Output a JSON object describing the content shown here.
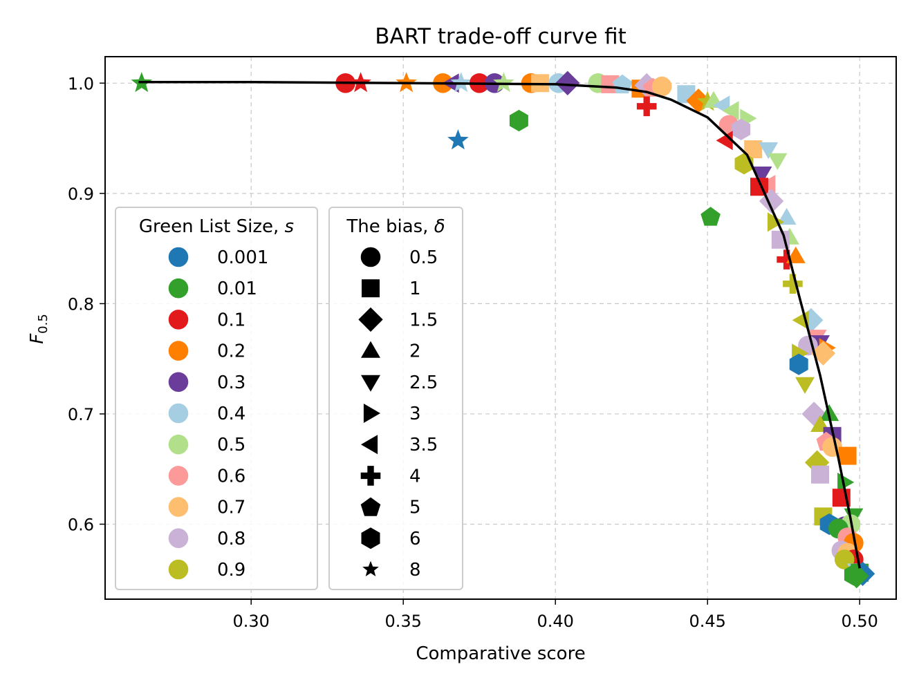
{
  "chart_data": {
    "type": "scatter",
    "title": "BART trade-off curve fit",
    "xlabel": "Comparative score",
    "ylabel": "F",
    "ylabel_sub": "0.5",
    "xlim": [
      0.252,
      0.512
    ],
    "ylim": [
      0.532,
      1.024
    ],
    "xticks": [
      "0.30",
      "0.35",
      "0.40",
      "0.45",
      "0.50"
    ],
    "xtick_values": [
      0.3,
      0.35,
      0.4,
      0.45,
      0.5
    ],
    "yticks": [
      "0.6",
      "0.7",
      "0.8",
      "0.9",
      "1.0"
    ],
    "ytick_values": [
      0.6,
      0.7,
      0.8,
      0.9,
      1.0
    ],
    "grid": true,
    "legends": [
      {
        "title": "Green List Size, ",
        "title_var": "s",
        "placement": "lower-left",
        "entries": [
          {
            "label": "0.001",
            "color": "#1f78b4"
          },
          {
            "label": "0.01",
            "color": "#33a02c"
          },
          {
            "label": "0.1",
            "color": "#e31a1c"
          },
          {
            "label": "0.2",
            "color": "#ff7f00"
          },
          {
            "label": "0.3",
            "color": "#6a3d9a"
          },
          {
            "label": "0.4",
            "color": "#a6cee3"
          },
          {
            "label": "0.5",
            "color": "#b2df8a"
          },
          {
            "label": "0.6",
            "color": "#fb9a99"
          },
          {
            "label": "0.7",
            "color": "#fdbf6f"
          },
          {
            "label": "0.8",
            "color": "#cab2d6"
          },
          {
            "label": "0.9",
            "color": "#bcbd22"
          }
        ]
      },
      {
        "title": "The bias, ",
        "title_var": "δ",
        "placement": "lower-left",
        "entries": [
          {
            "label": "0.5",
            "marker": "circle"
          },
          {
            "label": "1",
            "marker": "square"
          },
          {
            "label": "1.5",
            "marker": "diamond"
          },
          {
            "label": "2",
            "marker": "triangle-up"
          },
          {
            "label": "2.5",
            "marker": "triangle-down"
          },
          {
            "label": "3",
            "marker": "triangle-right"
          },
          {
            "label": "3.5",
            "marker": "triangle-left"
          },
          {
            "label": "4",
            "marker": "plus"
          },
          {
            "label": "5",
            "marker": "pentagon"
          },
          {
            "label": "6",
            "marker": "hexagon"
          },
          {
            "label": "8",
            "marker": "star"
          }
        ]
      }
    ],
    "fit_curve": {
      "color": "#000000",
      "x": [
        0.263,
        0.3,
        0.35,
        0.4,
        0.42,
        0.43,
        0.438,
        0.45,
        0.463,
        0.475,
        0.48,
        0.487,
        0.493,
        0.497,
        0.5
      ],
      "y": [
        1.001,
        1.001,
        1.0,
        0.999,
        0.996,
        0.992,
        0.985,
        0.969,
        0.935,
        0.862,
        0.808,
        0.735,
        0.66,
        0.605,
        0.56
      ]
    },
    "points": [
      {
        "x": 0.264,
        "y": 1.0,
        "s": 1,
        "m": "star"
      },
      {
        "x": 0.368,
        "y": 0.948,
        "s": 0,
        "m": "star"
      },
      {
        "x": 0.388,
        "y": 0.966,
        "s": 1,
        "m": "hexagon"
      },
      {
        "x": 0.451,
        "y": 0.879,
        "s": 1,
        "m": "pentagon"
      },
      {
        "x": 0.331,
        "y": 1.0,
        "s": 2,
        "m": "circle"
      },
      {
        "x": 0.336,
        "y": 1.0,
        "s": 2,
        "m": "star"
      },
      {
        "x": 0.351,
        "y": 1.0,
        "s": 3,
        "m": "star"
      },
      {
        "x": 0.363,
        "y": 1.0,
        "s": 3,
        "m": "circle"
      },
      {
        "x": 0.366,
        "y": 1.0,
        "s": 4,
        "m": "triangle-left"
      },
      {
        "x": 0.369,
        "y": 1.0,
        "s": 5,
        "m": "star"
      },
      {
        "x": 0.375,
        "y": 1.0,
        "s": 2,
        "m": "circle"
      },
      {
        "x": 0.38,
        "y": 1.0,
        "s": 4,
        "m": "circle"
      },
      {
        "x": 0.383,
        "y": 1.0,
        "s": 6,
        "m": "star"
      },
      {
        "x": 0.392,
        "y": 1.0,
        "s": 3,
        "m": "circle"
      },
      {
        "x": 0.395,
        "y": 1.0,
        "s": 8,
        "m": "square"
      },
      {
        "x": 0.401,
        "y": 1.0,
        "s": 5,
        "m": "circle"
      },
      {
        "x": 0.404,
        "y": 1.0,
        "s": 4,
        "m": "diamond"
      },
      {
        "x": 0.414,
        "y": 1.0,
        "s": 6,
        "m": "circle"
      },
      {
        "x": 0.418,
        "y": 0.999,
        "s": 7,
        "m": "square"
      },
      {
        "x": 0.422,
        "y": 0.999,
        "s": 5,
        "m": "pentagon"
      },
      {
        "x": 0.428,
        "y": 0.995,
        "s": 3,
        "m": "square"
      },
      {
        "x": 0.43,
        "y": 0.998,
        "s": 9,
        "m": "diamond"
      },
      {
        "x": 0.432,
        "y": 0.996,
        "s": 7,
        "m": "pentagon"
      },
      {
        "x": 0.435,
        "y": 0.997,
        "s": 8,
        "m": "circle"
      },
      {
        "x": 0.43,
        "y": 0.979,
        "s": 2,
        "m": "plus"
      },
      {
        "x": 0.443,
        "y": 0.99,
        "s": 5,
        "m": "square"
      },
      {
        "x": 0.447,
        "y": 0.984,
        "s": 3,
        "m": "diamond"
      },
      {
        "x": 0.45,
        "y": 0.983,
        "s": 10,
        "m": "star"
      },
      {
        "x": 0.452,
        "y": 0.984,
        "s": 6,
        "m": "triangle-up"
      },
      {
        "x": 0.455,
        "y": 0.98,
        "s": 5,
        "m": "triangle-left"
      },
      {
        "x": 0.458,
        "y": 0.975,
        "s": 6,
        "m": "triangle-left"
      },
      {
        "x": 0.463,
        "y": 0.968,
        "s": 6,
        "m": "triangle-right"
      },
      {
        "x": 0.457,
        "y": 0.962,
        "s": 7,
        "m": "circle"
      },
      {
        "x": 0.461,
        "y": 0.958,
        "s": 9,
        "m": "hexagon"
      },
      {
        "x": 0.456,
        "y": 0.948,
        "s": 2,
        "m": "triangle-left"
      },
      {
        "x": 0.465,
        "y": 0.94,
        "s": 8,
        "m": "square"
      },
      {
        "x": 0.47,
        "y": 0.94,
        "s": 5,
        "m": "triangle-down"
      },
      {
        "x": 0.462,
        "y": 0.927,
        "s": 10,
        "m": "hexagon"
      },
      {
        "x": 0.473,
        "y": 0.93,
        "s": 6,
        "m": "triangle-down"
      },
      {
        "x": 0.468,
        "y": 0.918,
        "s": 4,
        "m": "triangle-down"
      },
      {
        "x": 0.47,
        "y": 0.908,
        "s": 7,
        "m": "triangle-left"
      },
      {
        "x": 0.467,
        "y": 0.906,
        "s": 2,
        "m": "square"
      },
      {
        "x": 0.471,
        "y": 0.893,
        "s": 9,
        "m": "diamond"
      },
      {
        "x": 0.476,
        "y": 0.878,
        "s": 5,
        "m": "triangle-up"
      },
      {
        "x": 0.472,
        "y": 0.874,
        "s": 10,
        "m": "triangle-right"
      },
      {
        "x": 0.477,
        "y": 0.86,
        "s": 6,
        "m": "triangle-up"
      },
      {
        "x": 0.474,
        "y": 0.858,
        "s": 9,
        "m": "square"
      },
      {
        "x": 0.476,
        "y": 0.84,
        "s": 2,
        "m": "plus"
      },
      {
        "x": 0.479,
        "y": 0.843,
        "s": 3,
        "m": "triangle-up"
      },
      {
        "x": 0.478,
        "y": 0.818,
        "s": 10,
        "m": "plus"
      },
      {
        "x": 0.484,
        "y": 0.785,
        "s": 5,
        "m": "diamond"
      },
      {
        "x": 0.481,
        "y": 0.785,
        "s": 10,
        "m": "triangle-left"
      },
      {
        "x": 0.486,
        "y": 0.77,
        "s": 7,
        "m": "triangle-down"
      },
      {
        "x": 0.487,
        "y": 0.765,
        "s": 4,
        "m": "triangle-down"
      },
      {
        "x": 0.483,
        "y": 0.762,
        "s": 9,
        "m": "circle"
      },
      {
        "x": 0.489,
        "y": 0.76,
        "s": 3,
        "m": "triangle-right"
      },
      {
        "x": 0.488,
        "y": 0.755,
        "s": 8,
        "m": "diamond"
      },
      {
        "x": 0.48,
        "y": 0.755,
        "s": 10,
        "m": "triangle-right"
      },
      {
        "x": 0.48,
        "y": 0.745,
        "s": 0,
        "m": "hexagon"
      },
      {
        "x": 0.482,
        "y": 0.727,
        "s": 10,
        "m": "triangle-down"
      },
      {
        "x": 0.485,
        "y": 0.7,
        "s": 9,
        "m": "diamond"
      },
      {
        "x": 0.49,
        "y": 0.7,
        "s": 1,
        "m": "triangle-up"
      },
      {
        "x": 0.487,
        "y": 0.69,
        "s": 10,
        "m": "triangle-up"
      },
      {
        "x": 0.491,
        "y": 0.68,
        "s": 4,
        "m": "square"
      },
      {
        "x": 0.489,
        "y": 0.675,
        "s": 7,
        "m": "pentagon"
      },
      {
        "x": 0.491,
        "y": 0.67,
        "s": 8,
        "m": "circle"
      },
      {
        "x": 0.496,
        "y": 0.662,
        "s": 3,
        "m": "square"
      },
      {
        "x": 0.486,
        "y": 0.656,
        "s": 10,
        "m": "diamond"
      },
      {
        "x": 0.487,
        "y": 0.645,
        "s": 9,
        "m": "square"
      },
      {
        "x": 0.495,
        "y": 0.638,
        "s": 1,
        "m": "triangle-right"
      },
      {
        "x": 0.494,
        "y": 0.624,
        "s": 2,
        "m": "square"
      },
      {
        "x": 0.488,
        "y": 0.607,
        "s": 10,
        "m": "square"
      },
      {
        "x": 0.498,
        "y": 0.608,
        "s": 1,
        "m": "triangle-down"
      },
      {
        "x": 0.49,
        "y": 0.6,
        "s": 0,
        "m": "hexagon"
      },
      {
        "x": 0.495,
        "y": 0.598,
        "s": 4,
        "m": "circle"
      },
      {
        "x": 0.497,
        "y": 0.6,
        "s": 6,
        "m": "circle"
      },
      {
        "x": 0.493,
        "y": 0.596,
        "s": 1,
        "m": "circle"
      },
      {
        "x": 0.496,
        "y": 0.588,
        "s": 7,
        "m": "circle"
      },
      {
        "x": 0.498,
        "y": 0.583,
        "s": 3,
        "m": "circle"
      },
      {
        "x": 0.494,
        "y": 0.576,
        "s": 9,
        "m": "circle"
      },
      {
        "x": 0.496,
        "y": 0.574,
        "s": 8,
        "m": "circle"
      },
      {
        "x": 0.498,
        "y": 0.568,
        "s": 2,
        "m": "circle"
      },
      {
        "x": 0.495,
        "y": 0.568,
        "s": 10,
        "m": "circle"
      },
      {
        "x": 0.499,
        "y": 0.558,
        "s": 5,
        "m": "triangle-down"
      },
      {
        "x": 0.5,
        "y": 0.556,
        "s": 1,
        "m": "square"
      },
      {
        "x": 0.501,
        "y": 0.555,
        "s": 0,
        "m": "diamond"
      },
      {
        "x": 0.498,
        "y": 0.554,
        "s": 1,
        "m": "hexagon"
      },
      {
        "x": 0.499,
        "y": 0.553,
        "s": 1,
        "m": "diamond"
      }
    ]
  }
}
